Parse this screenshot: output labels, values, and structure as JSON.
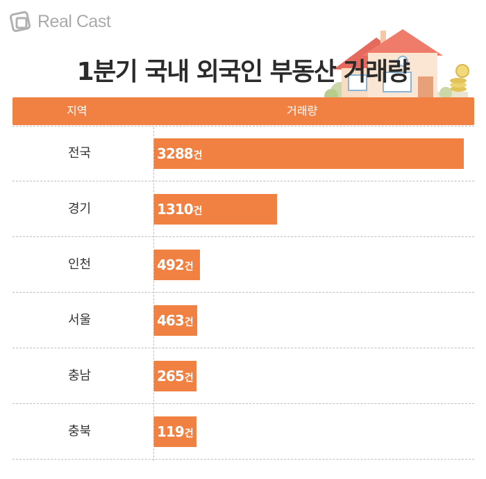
{
  "brand": {
    "logo_text": "Real Cast"
  },
  "title": "1분기 국내 외국인 부동산 거래량",
  "chart_data": {
    "type": "bar",
    "orientation": "horizontal",
    "title": "1분기 국내 외국인 부동산 거래량",
    "column_headers": [
      "지역",
      "거래량"
    ],
    "categories": [
      "전국",
      "경기",
      "인천",
      "서울",
      "충남",
      "충북"
    ],
    "values": [
      3288,
      1310,
      492,
      463,
      265,
      119
    ],
    "unit": "건",
    "bar_color": "#f08142",
    "gridlines": "dashed row separators"
  }
}
